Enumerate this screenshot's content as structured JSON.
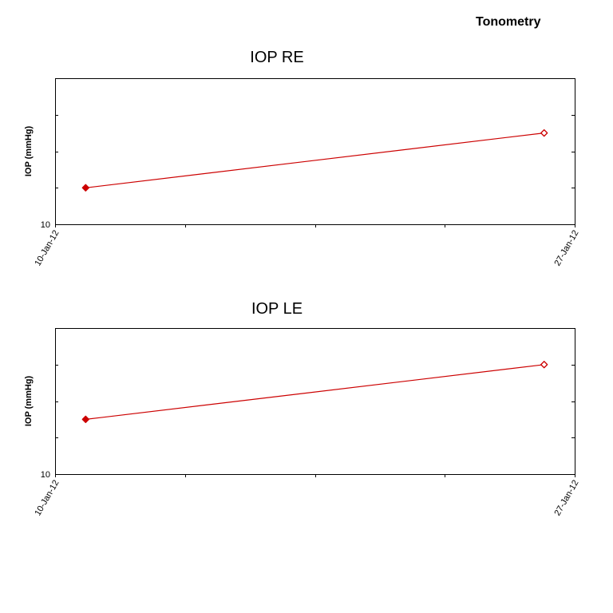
{
  "page": {
    "title": "Tonometry"
  },
  "colors": {
    "series": "#cc0000",
    "frame": "#000000",
    "background": "#ffffff"
  },
  "chart_data": [
    {
      "type": "line",
      "title": "IOP RE",
      "ylabel": "IOP (mmHg)",
      "y_tick_labels": [
        "10"
      ],
      "x_tick_labels": [
        "10-Jan-12",
        "27-Jan-12"
      ],
      "xlim": [
        "2012-01-10",
        "2012-01-27"
      ],
      "ylim": [
        10,
        18
      ],
      "grid": false,
      "legend": "none",
      "series": [
        {
          "x": [
            "2012-01-11",
            "2012-01-26"
          ],
          "y": [
            12,
            15
          ],
          "markers": [
            "filled",
            "hollow"
          ]
        }
      ]
    },
    {
      "type": "line",
      "title": "IOP LE",
      "ylabel": "IOP (mmHg)",
      "y_tick_labels": [
        "10"
      ],
      "x_tick_labels": [
        "10-Jan-12",
        "27-Jan-12"
      ],
      "xlim": [
        "2012-01-10",
        "2012-01-27"
      ],
      "ylim": [
        10,
        18
      ],
      "grid": false,
      "legend": "none",
      "series": [
        {
          "x": [
            "2012-01-11",
            "2012-01-26"
          ],
          "y": [
            13,
            16
          ],
          "markers": [
            "filled",
            "hollow"
          ]
        }
      ]
    }
  ]
}
